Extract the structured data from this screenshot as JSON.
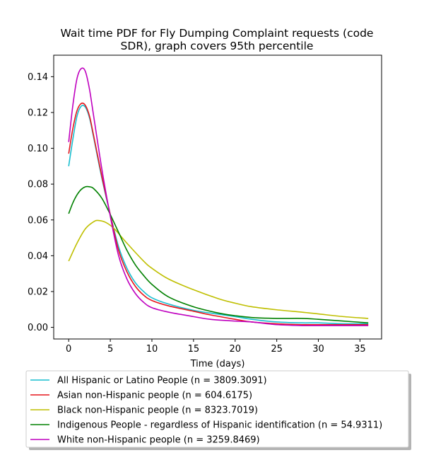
{
  "chart_data": {
    "type": "line",
    "title_lines": [
      "Wait time PDF for Fly Dumping Complaint  requests (code",
      "SDR), graph covers 95th percentile"
    ],
    "xlabel": "Time (days)",
    "ylabel": "",
    "xlim": [
      -1.8,
      37.6
    ],
    "ylim": [
      -0.0065,
      0.152
    ],
    "xticks": [
      0,
      5,
      10,
      15,
      20,
      25,
      30,
      35
    ],
    "xtick_labels": [
      "0",
      "5",
      "10",
      "15",
      "20",
      "25",
      "30",
      "35"
    ],
    "yticks": [
      0.0,
      0.02,
      0.04,
      0.06,
      0.08,
      0.1,
      0.12,
      0.14
    ],
    "ytick_labels": [
      "0.00",
      "0.02",
      "0.04",
      "0.06",
      "0.08",
      "0.10",
      "0.12",
      "0.14"
    ],
    "grid": false,
    "legend_position": "below-plot",
    "series": [
      {
        "name": "All Hispanic or Latino People (n = 3809.3091)",
        "color": "#17becf",
        "points": [
          [
            0,
            0.09
          ],
          [
            0.5,
            0.105
          ],
          [
            1.0,
            0.118
          ],
          [
            1.5,
            0.1235
          ],
          [
            2.0,
            0.123
          ],
          [
            2.5,
            0.117
          ],
          [
            3.0,
            0.106
          ],
          [
            4.0,
            0.083
          ],
          [
            5.0,
            0.063
          ],
          [
            6.0,
            0.045
          ],
          [
            7.0,
            0.033
          ],
          [
            8.0,
            0.025
          ],
          [
            9.0,
            0.02
          ],
          [
            10.0,
            0.0165
          ],
          [
            12.0,
            0.013
          ],
          [
            15.0,
            0.0095
          ],
          [
            17.0,
            0.008
          ],
          [
            20.0,
            0.006
          ],
          [
            22.0,
            0.0045
          ],
          [
            25.0,
            0.003
          ],
          [
            28.0,
            0.0025
          ],
          [
            30.0,
            0.0025
          ],
          [
            33.0,
            0.002
          ],
          [
            36.0,
            0.002
          ]
        ]
      },
      {
        "name": "Asian non-Hispanic people (n = 604.6175)",
        "color": "#e6161c",
        "points": [
          [
            0,
            0.097
          ],
          [
            0.5,
            0.111
          ],
          [
            1.0,
            0.121
          ],
          [
            1.5,
            0.125
          ],
          [
            2.0,
            0.124
          ],
          [
            2.5,
            0.118
          ],
          [
            3.0,
            0.107
          ],
          [
            4.0,
            0.084
          ],
          [
            5.0,
            0.063
          ],
          [
            6.0,
            0.043
          ],
          [
            7.0,
            0.031
          ],
          [
            8.0,
            0.023
          ],
          [
            9.0,
            0.018
          ],
          [
            10.0,
            0.015
          ],
          [
            12.0,
            0.012
          ],
          [
            15.0,
            0.009
          ],
          [
            17.0,
            0.007
          ],
          [
            20.0,
            0.0045
          ],
          [
            22.0,
            0.003
          ],
          [
            25.0,
            0.002
          ],
          [
            28.0,
            0.0015
          ],
          [
            30.0,
            0.0015
          ],
          [
            33.0,
            0.0015
          ],
          [
            36.0,
            0.0015
          ]
        ]
      },
      {
        "name": "Black non-Hispanic people (n = 8323.7019)",
        "color": "#bfbf00",
        "points": [
          [
            0,
            0.037
          ],
          [
            1.0,
            0.047
          ],
          [
            2.0,
            0.055
          ],
          [
            3.0,
            0.059
          ],
          [
            3.6,
            0.0597
          ],
          [
            4.5,
            0.0585
          ],
          [
            5.5,
            0.055
          ],
          [
            7.0,
            0.047
          ],
          [
            9.0,
            0.037
          ],
          [
            10.0,
            0.033
          ],
          [
            12.0,
            0.027
          ],
          [
            15.0,
            0.021
          ],
          [
            18.0,
            0.016
          ],
          [
            20.0,
            0.0135
          ],
          [
            22.0,
            0.0115
          ],
          [
            25.0,
            0.0098
          ],
          [
            28.0,
            0.0085
          ],
          [
            30.0,
            0.0075
          ],
          [
            33.0,
            0.006
          ],
          [
            36.0,
            0.005
          ]
        ]
      },
      {
        "name": "Indigenous People - regardless of Hispanic identification (n = 54.9311)",
        "color": "#008000",
        "points": [
          [
            0,
            0.0635
          ],
          [
            0.5,
            0.0695
          ],
          [
            1.0,
            0.074
          ],
          [
            1.5,
            0.077
          ],
          [
            2.0,
            0.0785
          ],
          [
            2.5,
            0.0785
          ],
          [
            3.0,
            0.0775
          ],
          [
            4.0,
            0.072
          ],
          [
            5.0,
            0.063
          ],
          [
            6.0,
            0.053
          ],
          [
            7.0,
            0.043
          ],
          [
            8.0,
            0.035
          ],
          [
            9.0,
            0.029
          ],
          [
            10.0,
            0.024
          ],
          [
            12.0,
            0.017
          ],
          [
            15.0,
            0.0115
          ],
          [
            18.0,
            0.008
          ],
          [
            20.0,
            0.0065
          ],
          [
            22.0,
            0.0055
          ],
          [
            25.0,
            0.005
          ],
          [
            28.0,
            0.005
          ],
          [
            30.0,
            0.0045
          ],
          [
            33.0,
            0.0035
          ],
          [
            36.0,
            0.0025
          ]
        ]
      },
      {
        "name": "White non-Hispanic people (n = 3259.8469)",
        "color": "#bf00bf",
        "points": [
          [
            0,
            0.1035
          ],
          [
            0.5,
            0.124
          ],
          [
            1.0,
            0.139
          ],
          [
            1.5,
            0.1445
          ],
          [
            2.0,
            0.143
          ],
          [
            2.5,
            0.133
          ],
          [
            3.0,
            0.118
          ],
          [
            4.0,
            0.088
          ],
          [
            5.0,
            0.062
          ],
          [
            6.0,
            0.04
          ],
          [
            7.0,
            0.027
          ],
          [
            8.0,
            0.019
          ],
          [
            9.0,
            0.014
          ],
          [
            10.0,
            0.011
          ],
          [
            12.0,
            0.0085
          ],
          [
            15.0,
            0.006
          ],
          [
            17.0,
            0.0045
          ],
          [
            20.0,
            0.0035
          ],
          [
            22.0,
            0.003
          ],
          [
            25.0,
            0.0015
          ],
          [
            28.0,
            0.001
          ],
          [
            30.0,
            0.001
          ],
          [
            33.0,
            0.001
          ],
          [
            36.0,
            0.001
          ]
        ]
      }
    ]
  }
}
